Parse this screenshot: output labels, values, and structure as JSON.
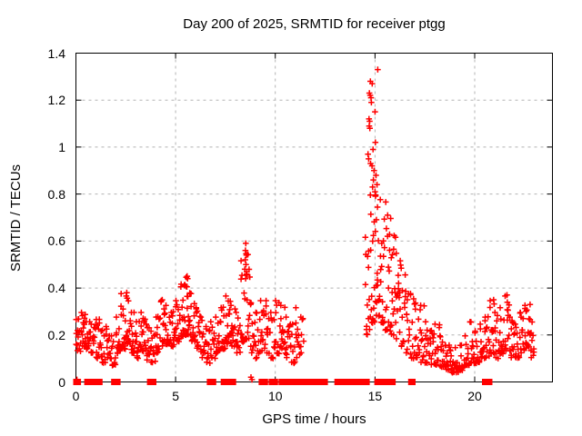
{
  "title": "Day 200 of 2025, SRMTID for receiver ptgg",
  "chart_data": {
    "type": "scatter",
    "title": "Day 200 of 2025, SRMTID for receiver ptgg",
    "xlabel": "GPS time / hours",
    "ylabel": "SRMTID / TECUs",
    "xlim": [
      0,
      23.9
    ],
    "ylim": [
      0,
      1.4
    ],
    "xticks": [
      [
        0,
        "0"
      ],
      [
        5,
        "5"
      ],
      [
        10,
        "10"
      ],
      [
        15,
        "15"
      ],
      [
        20,
        "20"
      ]
    ],
    "yticks": [
      [
        0,
        "0"
      ],
      [
        0.2,
        "0.2"
      ],
      [
        0.4,
        "0.4"
      ],
      [
        0.6,
        "0.6"
      ],
      [
        0.8,
        "0.8"
      ],
      [
        1,
        "1"
      ],
      [
        1.2,
        "1.2"
      ],
      [
        1.4,
        "1.4"
      ]
    ],
    "grid": true,
    "grid_color": "#b3b3b3",
    "marker_color": "#ff0000",
    "notes": "dense + marker cloud 0-11.4h around 0.07-0.45; no data 11.5-14.5h; sharp spike 14.5-15.2h peaking 1.33; decay to 17h; valley near 19h at 0.04-0.15; mild rise to ~0.35 by 21-23h; red filled squares along y=0 mark flagged intervals",
    "series": [
      {
        "name": "SRMTID",
        "marker": "plus",
        "color": "#ff0000",
        "envelope_bins_format": "[t_start_hours, t_end_hours, v_min_TECU, v_max_TECU, point_count]",
        "envelope_bins": [
          [
            0.0,
            0.25,
            0.13,
            0.27,
            13
          ],
          [
            0.25,
            0.5,
            0.15,
            0.3,
            15
          ],
          [
            0.5,
            0.75,
            0.14,
            0.26,
            14
          ],
          [
            0.75,
            1.0,
            0.12,
            0.25,
            13
          ],
          [
            1.0,
            1.25,
            0.1,
            0.27,
            14
          ],
          [
            1.25,
            1.5,
            0.08,
            0.22,
            12
          ],
          [
            1.5,
            1.75,
            0.1,
            0.24,
            12
          ],
          [
            1.75,
            2.0,
            0.07,
            0.2,
            12
          ],
          [
            2.0,
            2.25,
            0.12,
            0.28,
            14
          ],
          [
            2.25,
            2.5,
            0.14,
            0.38,
            16
          ],
          [
            2.5,
            2.75,
            0.16,
            0.37,
            16
          ],
          [
            2.75,
            3.0,
            0.12,
            0.3,
            14
          ],
          [
            3.0,
            3.25,
            0.1,
            0.26,
            13
          ],
          [
            3.25,
            3.5,
            0.13,
            0.3,
            14
          ],
          [
            3.5,
            3.75,
            0.09,
            0.25,
            12
          ],
          [
            3.75,
            4.0,
            0.08,
            0.22,
            12
          ],
          [
            4.0,
            4.25,
            0.12,
            0.28,
            13
          ],
          [
            4.25,
            4.5,
            0.15,
            0.35,
            14
          ],
          [
            4.5,
            4.75,
            0.16,
            0.33,
            14
          ],
          [
            4.75,
            5.0,
            0.15,
            0.3,
            14
          ],
          [
            5.0,
            5.25,
            0.17,
            0.35,
            14
          ],
          [
            5.25,
            5.5,
            0.19,
            0.42,
            16
          ],
          [
            5.5,
            5.75,
            0.2,
            0.45,
            18
          ],
          [
            5.75,
            6.0,
            0.17,
            0.38,
            15
          ],
          [
            6.0,
            6.25,
            0.14,
            0.32,
            13
          ],
          [
            6.25,
            6.5,
            0.1,
            0.28,
            12
          ],
          [
            6.5,
            6.75,
            0.08,
            0.24,
            12
          ],
          [
            6.75,
            7.0,
            0.1,
            0.26,
            12
          ],
          [
            7.0,
            7.25,
            0.12,
            0.28,
            12
          ],
          [
            7.25,
            7.5,
            0.14,
            0.32,
            14
          ],
          [
            7.5,
            7.75,
            0.16,
            0.37,
            16
          ],
          [
            7.75,
            8.0,
            0.15,
            0.33,
            14
          ],
          [
            8.0,
            8.25,
            0.12,
            0.3,
            13
          ],
          [
            8.25,
            8.5,
            0.17,
            0.52,
            15
          ],
          [
            8.5,
            8.75,
            0.18,
            0.55,
            15
          ],
          [
            8.75,
            9.0,
            0.12,
            0.34,
            11
          ],
          [
            9.0,
            9.25,
            0.1,
            0.3,
            11
          ],
          [
            9.25,
            9.5,
            0.13,
            0.35,
            12
          ],
          [
            9.5,
            9.75,
            0.12,
            0.35,
            12
          ],
          [
            9.75,
            10.0,
            0.1,
            0.3,
            11
          ],
          [
            10.0,
            10.25,
            0.12,
            0.35,
            12
          ],
          [
            10.25,
            10.5,
            0.14,
            0.33,
            13
          ],
          [
            10.5,
            10.75,
            0.1,
            0.28,
            12
          ],
          [
            10.75,
            11.0,
            0.08,
            0.25,
            11
          ],
          [
            11.0,
            11.25,
            0.1,
            0.32,
            11
          ],
          [
            11.25,
            11.45,
            0.12,
            0.28,
            7
          ],
          [
            14.5,
            14.75,
            0.2,
            0.62,
            14
          ],
          [
            14.75,
            15.0,
            0.25,
            0.8,
            16
          ],
          [
            15.0,
            15.25,
            0.28,
            0.8,
            18
          ],
          [
            15.25,
            15.5,
            0.25,
            0.78,
            16
          ],
          [
            15.5,
            15.75,
            0.22,
            0.77,
            16
          ],
          [
            15.75,
            16.0,
            0.2,
            0.7,
            16
          ],
          [
            16.0,
            16.25,
            0.18,
            0.62,
            15
          ],
          [
            16.25,
            16.5,
            0.15,
            0.52,
            13
          ],
          [
            16.5,
            16.75,
            0.12,
            0.46,
            13
          ],
          [
            16.75,
            17.0,
            0.1,
            0.38,
            12
          ],
          [
            17.0,
            17.25,
            0.1,
            0.34,
            12
          ],
          [
            17.25,
            17.5,
            0.08,
            0.33,
            12
          ],
          [
            17.5,
            17.75,
            0.08,
            0.26,
            12
          ],
          [
            17.75,
            18.0,
            0.07,
            0.22,
            12
          ],
          [
            18.0,
            18.25,
            0.07,
            0.25,
            12
          ],
          [
            18.25,
            18.5,
            0.06,
            0.2,
            12
          ],
          [
            18.5,
            18.75,
            0.05,
            0.16,
            12
          ],
          [
            18.75,
            19.0,
            0.04,
            0.14,
            12
          ],
          [
            19.0,
            19.25,
            0.04,
            0.15,
            12
          ],
          [
            19.25,
            19.5,
            0.05,
            0.16,
            12
          ],
          [
            19.5,
            19.75,
            0.07,
            0.2,
            12
          ],
          [
            19.75,
            20.0,
            0.08,
            0.26,
            13
          ],
          [
            20.0,
            20.25,
            0.08,
            0.22,
            12
          ],
          [
            20.25,
            20.5,
            0.1,
            0.25,
            12
          ],
          [
            20.5,
            20.75,
            0.1,
            0.28,
            12
          ],
          [
            20.75,
            21.0,
            0.12,
            0.35,
            14
          ],
          [
            21.0,
            21.25,
            0.1,
            0.3,
            12
          ],
          [
            21.25,
            21.5,
            0.12,
            0.32,
            13
          ],
          [
            21.5,
            21.75,
            0.13,
            0.37,
            14
          ],
          [
            21.75,
            22.0,
            0.1,
            0.28,
            13
          ],
          [
            22.0,
            22.25,
            0.1,
            0.25,
            12
          ],
          [
            22.25,
            22.5,
            0.12,
            0.3,
            13
          ],
          [
            22.5,
            22.75,
            0.14,
            0.33,
            13
          ],
          [
            22.75,
            23.0,
            0.1,
            0.27,
            12
          ]
        ],
        "peak_points_format": "[t_hours, v_TECU]",
        "peak_points": [
          [
            15.14,
            1.33
          ],
          [
            14.77,
            1.28
          ],
          [
            14.86,
            1.27
          ],
          [
            14.72,
            1.23
          ],
          [
            14.76,
            1.22
          ],
          [
            14.8,
            1.21
          ],
          [
            14.82,
            1.19
          ],
          [
            15.0,
            1.15
          ],
          [
            14.7,
            1.12
          ],
          [
            14.73,
            1.11
          ],
          [
            14.71,
            1.09
          ],
          [
            14.74,
            1.08
          ],
          [
            15.02,
            1.02
          ],
          [
            14.9,
            0.99
          ],
          [
            14.65,
            0.97
          ],
          [
            14.68,
            0.95
          ],
          [
            14.78,
            0.93
          ],
          [
            14.85,
            0.92
          ],
          [
            14.95,
            0.9
          ],
          [
            15.05,
            0.88
          ],
          [
            14.92,
            0.86
          ],
          [
            15.1,
            0.84
          ],
          [
            14.88,
            0.83
          ],
          [
            15.0,
            0.81
          ],
          [
            8.52,
            0.59
          ],
          [
            8.5,
            0.56
          ],
          [
            8.55,
            0.54
          ],
          [
            8.49,
            0.52
          ],
          [
            8.53,
            0.5
          ],
          [
            8.47,
            0.48
          ],
          [
            8.56,
            0.46
          ],
          [
            8.51,
            0.44
          ],
          [
            5.58,
            0.45
          ],
          [
            5.6,
            0.44
          ],
          [
            2.55,
            0.38
          ],
          [
            21.62,
            0.37
          ],
          [
            20.95,
            0.35
          ],
          [
            22.78,
            0.33
          ],
          [
            0.05,
            0.01
          ],
          [
            8.78,
            0.02
          ],
          [
            8.83,
            0.01
          ]
        ]
      },
      {
        "name": "flagged intervals",
        "marker": "filled-square",
        "color": "#ff0000",
        "y": 0,
        "x_ranges": [
          [
            0.0,
            0.12
          ],
          [
            0.55,
            0.8
          ],
          [
            1.0,
            1.2
          ],
          [
            1.9,
            2.1
          ],
          [
            3.7,
            3.9
          ],
          [
            6.7,
            6.9
          ],
          [
            7.4,
            7.9
          ],
          [
            9.3,
            9.5
          ],
          [
            9.8,
            10.0
          ],
          [
            10.3,
            10.5
          ],
          [
            10.6,
            10.8
          ],
          [
            10.9,
            11.1
          ],
          [
            11.3,
            11.5
          ],
          [
            11.7,
            11.9
          ],
          [
            11.95,
            12.5
          ],
          [
            13.1,
            13.3
          ],
          [
            13.42,
            13.5
          ],
          [
            13.6,
            14.6
          ],
          [
            15.1,
            15.2
          ],
          [
            15.4,
            15.5
          ],
          [
            15.75,
            15.9
          ],
          [
            16.8,
            16.9
          ],
          [
            20.5,
            20.75
          ]
        ]
      }
    ]
  }
}
